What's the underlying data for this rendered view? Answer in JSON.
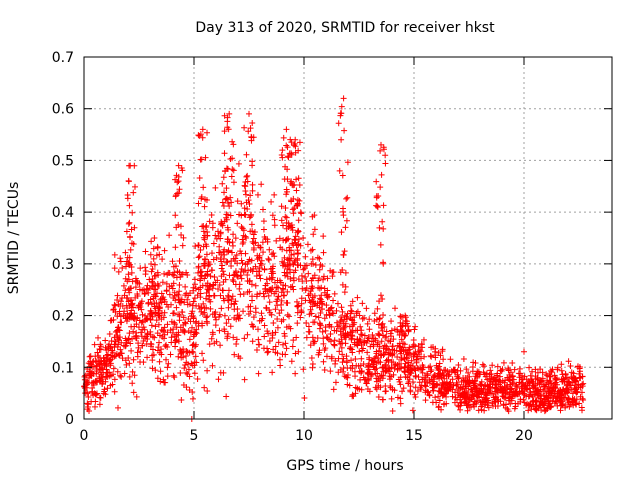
{
  "chart_data": {
    "type": "scatter",
    "title": "Day 313 of 2020, SRMTID for receiver hkst",
    "xlabel": "GPS time / hours",
    "ylabel": "SRMTID / TECUs",
    "xlim": [
      0,
      24
    ],
    "ylim": [
      0,
      0.7
    ],
    "xticks": [
      "0",
      "5",
      "10",
      "15",
      "20"
    ],
    "yticks": [
      "0",
      "0.1",
      "0.2",
      "0.3",
      "0.4",
      "0.5",
      "0.6",
      "0.7"
    ],
    "grid": true,
    "marker": "+",
    "series": [
      {
        "name": "SRMTID",
        "color": "#ff0000",
        "profile": [
          {
            "x": 0.0,
            "y": 0.06
          },
          {
            "x": 0.5,
            "y": 0.09
          },
          {
            "x": 1.0,
            "y": 0.09
          },
          {
            "x": 1.5,
            "y": 0.19
          },
          {
            "x": 2.0,
            "y": 0.2
          },
          {
            "x": 2.5,
            "y": 0.17
          },
          {
            "x": 3.0,
            "y": 0.19
          },
          {
            "x": 3.5,
            "y": 0.2
          },
          {
            "x": 4.0,
            "y": 0.2
          },
          {
            "x": 4.5,
            "y": 0.17
          },
          {
            "x": 5.0,
            "y": 0.17
          },
          {
            "x": 5.5,
            "y": 0.26
          },
          {
            "x": 6.0,
            "y": 0.27
          },
          {
            "x": 6.5,
            "y": 0.3
          },
          {
            "x": 7.0,
            "y": 0.28
          },
          {
            "x": 7.5,
            "y": 0.3
          },
          {
            "x": 8.0,
            "y": 0.26
          },
          {
            "x": 8.5,
            "y": 0.25
          },
          {
            "x": 9.0,
            "y": 0.27
          },
          {
            "x": 9.5,
            "y": 0.28
          },
          {
            "x": 10.0,
            "y": 0.25
          },
          {
            "x": 10.5,
            "y": 0.22
          },
          {
            "x": 11.0,
            "y": 0.2
          },
          {
            "x": 11.5,
            "y": 0.16
          },
          {
            "x": 12.0,
            "y": 0.15
          },
          {
            "x": 12.5,
            "y": 0.14
          },
          {
            "x": 13.0,
            "y": 0.13
          },
          {
            "x": 13.5,
            "y": 0.12
          },
          {
            "x": 14.0,
            "y": 0.11
          },
          {
            "x": 14.5,
            "y": 0.11
          },
          {
            "x": 15.0,
            "y": 0.1
          },
          {
            "x": 16.0,
            "y": 0.08
          },
          {
            "x": 17.0,
            "y": 0.06
          },
          {
            "x": 18.0,
            "y": 0.06
          },
          {
            "x": 19.0,
            "y": 0.055
          },
          {
            "x": 20.0,
            "y": 0.055
          },
          {
            "x": 21.0,
            "y": 0.05
          },
          {
            "x": 22.0,
            "y": 0.055
          },
          {
            "x": 22.7,
            "y": 0.06
          }
        ],
        "peaks": [
          {
            "x": 2.1,
            "y": 0.49
          },
          {
            "x": 3.2,
            "y": 0.35
          },
          {
            "x": 4.3,
            "y": 0.49
          },
          {
            "x": 5.4,
            "y": 0.56
          },
          {
            "x": 6.6,
            "y": 0.59
          },
          {
            "x": 7.5,
            "y": 0.59
          },
          {
            "x": 9.2,
            "y": 0.56
          },
          {
            "x": 9.6,
            "y": 0.54
          },
          {
            "x": 11.8,
            "y": 0.62
          },
          {
            "x": 13.5,
            "y": 0.53
          },
          {
            "x": 14.6,
            "y": 0.2
          }
        ],
        "isolated_points": [
          {
            "x": 4.9,
            "y": 0.0
          },
          {
            "x": 20.0,
            "y": 0.13
          }
        ]
      }
    ]
  }
}
